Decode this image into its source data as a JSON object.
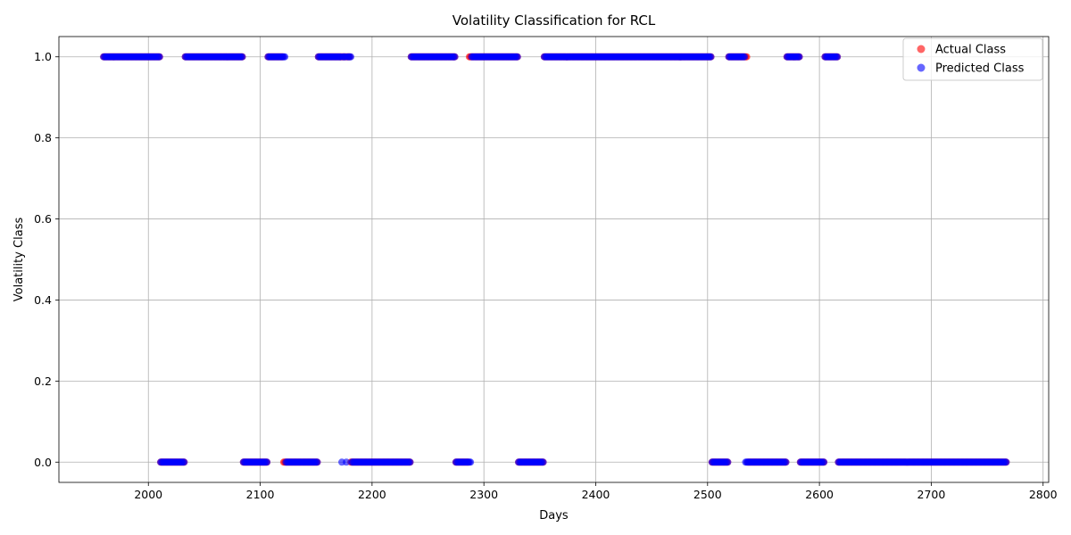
{
  "chart_data": {
    "type": "scatter",
    "title": "Volatility Classification for RCL",
    "xlabel": "Days",
    "ylabel": "Volatility Class",
    "xlim": [
      1920,
      2805
    ],
    "ylim": [
      -0.05,
      1.05
    ],
    "xticks": [
      2000,
      2100,
      2200,
      2300,
      2400,
      2500,
      2600,
      2700,
      2800
    ],
    "xtick_labels": [
      "2000",
      "2100",
      "2200",
      "2300",
      "2400",
      "2500",
      "2600",
      "2700",
      "2800"
    ],
    "yticks": [
      0.0,
      0.2,
      0.4,
      0.6,
      0.8,
      1.0
    ],
    "ytick_labels": [
      "0.0",
      "0.2",
      "0.4",
      "0.6",
      "0.8",
      "1.0"
    ],
    "grid": true,
    "legend_position": "top-right",
    "x_start": 1960,
    "x_end": 2767,
    "series": [
      {
        "name": "Actual Class",
        "color": "#ff0000",
        "alpha": 0.6,
        "segments": [
          {
            "from": 1960,
            "to": 2010,
            "class": 1
          },
          {
            "from": 2011,
            "to": 2032,
            "class": 0
          },
          {
            "from": 2033,
            "to": 2084,
            "class": 1
          },
          {
            "from": 2085,
            "to": 2106,
            "class": 0
          },
          {
            "from": 2107,
            "to": 2120,
            "class": 1
          },
          {
            "from": 2121,
            "to": 2151,
            "class": 0
          },
          {
            "from": 2152,
            "to": 2180,
            "class": 1
          },
          {
            "from": 2181,
            "to": 2234,
            "class": 0
          },
          {
            "from": 2235,
            "to": 2274,
            "class": 1
          },
          {
            "from": 2275,
            "to": 2286,
            "class": 0
          },
          {
            "from": 2287,
            "to": 2330,
            "class": 1
          },
          {
            "from": 2331,
            "to": 2353,
            "class": 0
          },
          {
            "from": 2354,
            "to": 2503,
            "class": 1
          },
          {
            "from": 2504,
            "to": 2518,
            "class": 0
          },
          {
            "from": 2519,
            "to": 2535,
            "class": 1
          },
          {
            "from": 2536,
            "to": 2570,
            "class": 0
          },
          {
            "from": 2571,
            "to": 2582,
            "class": 1
          },
          {
            "from": 2583,
            "to": 2604,
            "class": 0
          },
          {
            "from": 2605,
            "to": 2616,
            "class": 1
          },
          {
            "from": 2617,
            "to": 2767,
            "class": 0
          }
        ]
      },
      {
        "name": "Predicted Class",
        "color": "#0000ff",
        "alpha": 0.6,
        "segments": [
          {
            "from": 1960,
            "to": 2010,
            "class": 1
          },
          {
            "from": 2011,
            "to": 2032,
            "class": 0
          },
          {
            "from": 2033,
            "to": 2084,
            "class": 1
          },
          {
            "from": 2085,
            "to": 2106,
            "class": 0
          },
          {
            "from": 2107,
            "to": 2122,
            "class": 1
          },
          {
            "from": 2123,
            "to": 2151,
            "class": 0
          },
          {
            "from": 2152,
            "to": 2172,
            "class": 1
          },
          {
            "from": 2173,
            "to": 2173,
            "class": 0
          },
          {
            "from": 2174,
            "to": 2176,
            "class": 1
          },
          {
            "from": 2177,
            "to": 2177,
            "class": 0
          },
          {
            "from": 2178,
            "to": 2181,
            "class": 1
          },
          {
            "from": 2182,
            "to": 2234,
            "class": 0
          },
          {
            "from": 2235,
            "to": 2274,
            "class": 1
          },
          {
            "from": 2275,
            "to": 2288,
            "class": 0
          },
          {
            "from": 2289,
            "to": 2330,
            "class": 1
          },
          {
            "from": 2331,
            "to": 2353,
            "class": 0
          },
          {
            "from": 2354,
            "to": 2503,
            "class": 1
          },
          {
            "from": 2504,
            "to": 2518,
            "class": 0
          },
          {
            "from": 2519,
            "to": 2533,
            "class": 1
          },
          {
            "from": 2534,
            "to": 2570,
            "class": 0
          },
          {
            "from": 2571,
            "to": 2582,
            "class": 1
          },
          {
            "from": 2583,
            "to": 2604,
            "class": 0
          },
          {
            "from": 2605,
            "to": 2616,
            "class": 1
          },
          {
            "from": 2617,
            "to": 2767,
            "class": 0
          }
        ]
      }
    ]
  }
}
